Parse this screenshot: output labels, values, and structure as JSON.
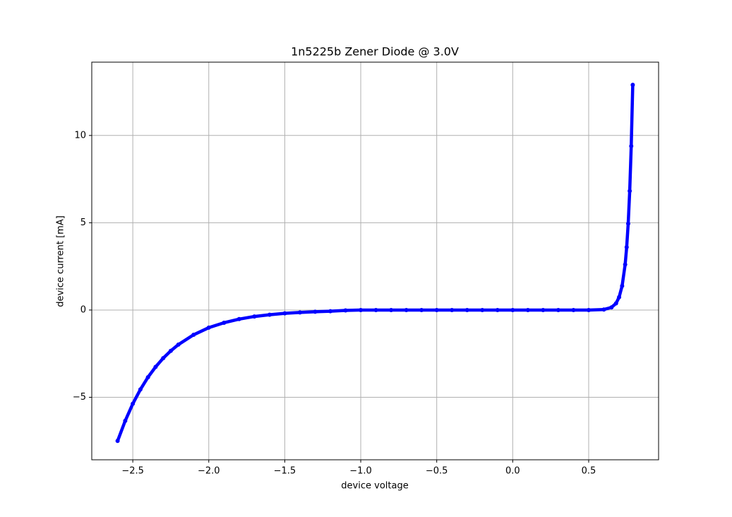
{
  "chart_data": {
    "type": "line",
    "title": "1n5225b Zener Diode @ 3.0V",
    "x_label": "device voltage",
    "y_label": "device current [mA]",
    "color": "#0000ff",
    "grid": true,
    "marker": "dot",
    "xlim": [
      -2.77,
      0.96
    ],
    "ylim": [
      -8.58,
      14.2
    ],
    "xticks": [
      {
        "value": -2.5,
        "label": "−2.5"
      },
      {
        "value": -2.0,
        "label": "−2.0"
      },
      {
        "value": -1.5,
        "label": "−1.5"
      },
      {
        "value": -1.0,
        "label": "−1.0"
      },
      {
        "value": -0.5,
        "label": "−0.5"
      },
      {
        "value": 0,
        "label": "0.0"
      },
      0.5
    ],
    "yticks": [
      {
        "value": -5,
        "label": "−5"
      },
      0,
      5,
      10
    ],
    "x": [
      -2.6,
      -2.55,
      -2.5,
      -2.45,
      -2.4,
      -2.35,
      -2.3,
      -2.25,
      -2.2,
      -2.1,
      -2.0,
      -1.9,
      -1.8,
      -1.7,
      -1.6,
      -1.5,
      -1.4,
      -1.3,
      -1.2,
      -1.1,
      -1.0,
      -0.9,
      -0.8,
      -0.7,
      -0.6,
      -0.5,
      -0.4,
      -0.3,
      -0.2,
      -0.1,
      0.0,
      0.1,
      0.2,
      0.3,
      0.4,
      0.5,
      0.6,
      0.65,
      0.68,
      0.7,
      0.72,
      0.74,
      0.75,
      0.76,
      0.77,
      0.78,
      0.79
    ],
    "values": [
      -7.5,
      -6.35,
      -5.37,
      -4.55,
      -3.85,
      -3.26,
      -2.76,
      -2.34,
      -1.98,
      -1.42,
      -1.01,
      -0.73,
      -0.52,
      -0.37,
      -0.27,
      -0.19,
      -0.14,
      -0.1,
      -0.07,
      -0.02,
      0,
      0,
      0,
      0,
      0,
      0,
      0,
      0,
      0,
      0,
      0,
      0,
      0,
      0,
      0,
      0,
      0.03,
      0.15,
      0.38,
      0.73,
      1.38,
      2.61,
      3.6,
      4.95,
      6.82,
      9.39,
      12.9
    ]
  }
}
